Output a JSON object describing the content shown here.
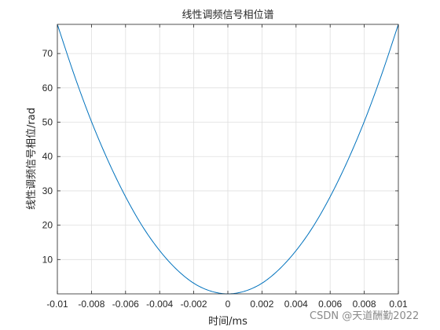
{
  "chart_data": {
    "type": "line",
    "title": "线性调频信号相位谱",
    "xlabel": "时间/ms",
    "ylabel": "线性调频信号相位/rad",
    "xlim": [
      -0.01,
      0.01
    ],
    "ylim": [
      0,
      78.5
    ],
    "grid": true,
    "xticks": [
      -0.01,
      -0.008,
      -0.006,
      -0.004,
      -0.002,
      0,
      0.002,
      0.004,
      0.006,
      0.008,
      0.01
    ],
    "xtick_labels": [
      "-0.01",
      "-0.008",
      "-0.006",
      "-0.004",
      "-0.002",
      "0",
      "0.002",
      "0.004",
      "0.006",
      "0.008",
      "0.01"
    ],
    "yticks": [
      10,
      20,
      30,
      40,
      50,
      60,
      70
    ],
    "ytick_labels": [
      "10",
      "20",
      "30",
      "40",
      "50",
      "60",
      "70"
    ],
    "series": [
      {
        "color": "#0072bd",
        "x": [
          -0.01,
          -0.009,
          -0.008,
          -0.007,
          -0.006,
          -0.005,
          -0.004,
          -0.003,
          -0.002,
          -0.001,
          0,
          0.001,
          0.002,
          0.003,
          0.004,
          0.005,
          0.006,
          0.007,
          0.008,
          0.009,
          0.01
        ],
        "y": [
          78.5,
          63.6,
          50.2,
          38.5,
          28.3,
          19.6,
          12.6,
          7.1,
          3.1,
          0.8,
          0,
          0.8,
          3.1,
          7.1,
          12.6,
          19.6,
          28.3,
          38.5,
          50.2,
          63.6,
          78.5
        ]
      }
    ]
  },
  "watermark": "CSDN @天道酬勤2022"
}
